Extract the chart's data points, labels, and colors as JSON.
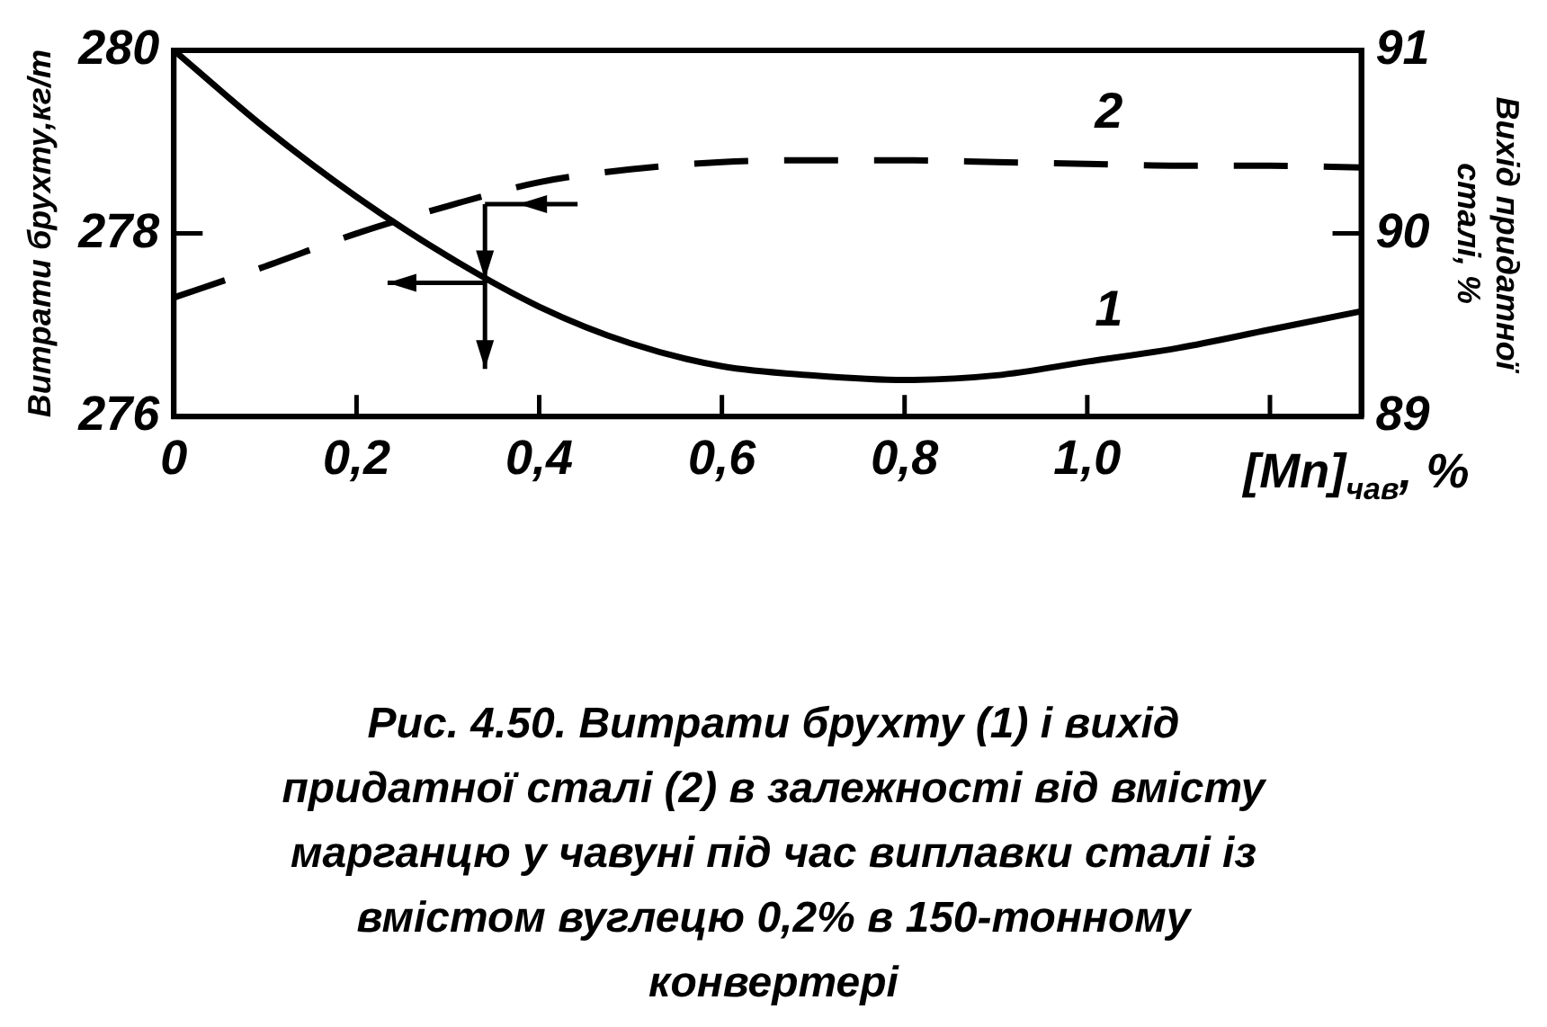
{
  "chart_data": {
    "type": "line",
    "title": "Рис. 4.50. Витрати брухту (1) і вихід придатної сталі (2) в залежності від вмісту марганцю у чавуні під час виплавки сталі із вмістом вуглецю 0,2% в 150-тонному конвертері",
    "xlabel": "[Mn]$_{чав}$, %",
    "ylabel": "Витрати брухту,кг/т",
    "y2label": "Вихід придатної сталі, %",
    "x": [
      0,
      0.1,
      0.2,
      0.3,
      0.4,
      0.5,
      0.6,
      0.7,
      0.8,
      0.9,
      1.0,
      1.1,
      1.2,
      1.3
    ],
    "series": [
      {
        "name": "1",
        "color": "#000000",
        "line_style": "solid",
        "values": [
          280,
          279.15,
          278.4,
          277.75,
          277.2,
          276.8,
          276.55,
          276.45,
          276.4,
          276.45,
          276.6,
          276.75,
          276.95,
          277.15
        ]
      },
      {
        "name": "2",
        "color": "#000000",
        "line_style": "dashed",
        "axis": "y2",
        "values": [
          89.65,
          89.82,
          90.0,
          90.15,
          90.28,
          90.35,
          90.39,
          90.4,
          90.4,
          90.39,
          90.38,
          90.37,
          90.37,
          90.36
        ]
      }
    ],
    "xlim": [
      0,
      1.3
    ],
    "xticks": [
      0,
      {
        "value": 0.2,
        "label": "0,2"
      },
      {
        "value": 0.4,
        "label": "0,4"
      },
      {
        "value": 0.6,
        "label": "0,6"
      },
      {
        "value": 0.8,
        "label": "0,8"
      },
      {
        "value": 1.0,
        "label": "1,0"
      },
      {
        "value": 1.2,
        "label": null
      }
    ],
    "ylim": [
      276,
      280
    ],
    "yticks": [
      276,
      278,
      280
    ],
    "y2lim": [
      89,
      91
    ],
    "y2ticks": [
      89,
      90,
      91
    ],
    "grid": false,
    "legend": false,
    "marker": "none"
  }
}
